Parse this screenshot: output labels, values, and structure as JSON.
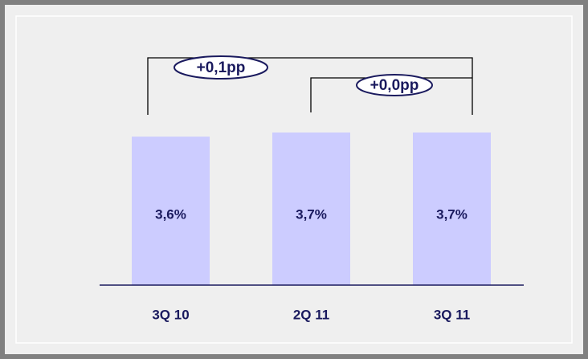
{
  "chart_data": {
    "type": "bar",
    "categories": [
      "3Q 10",
      "2Q 11",
      "3Q 11"
    ],
    "values": [
      3.6,
      3.7,
      3.7
    ],
    "value_labels": [
      "3,6%",
      "3,7%",
      "3,7%"
    ],
    "color": "#ccccff",
    "annotations": [
      "+0,1pp",
      "+0,0pp"
    ]
  }
}
